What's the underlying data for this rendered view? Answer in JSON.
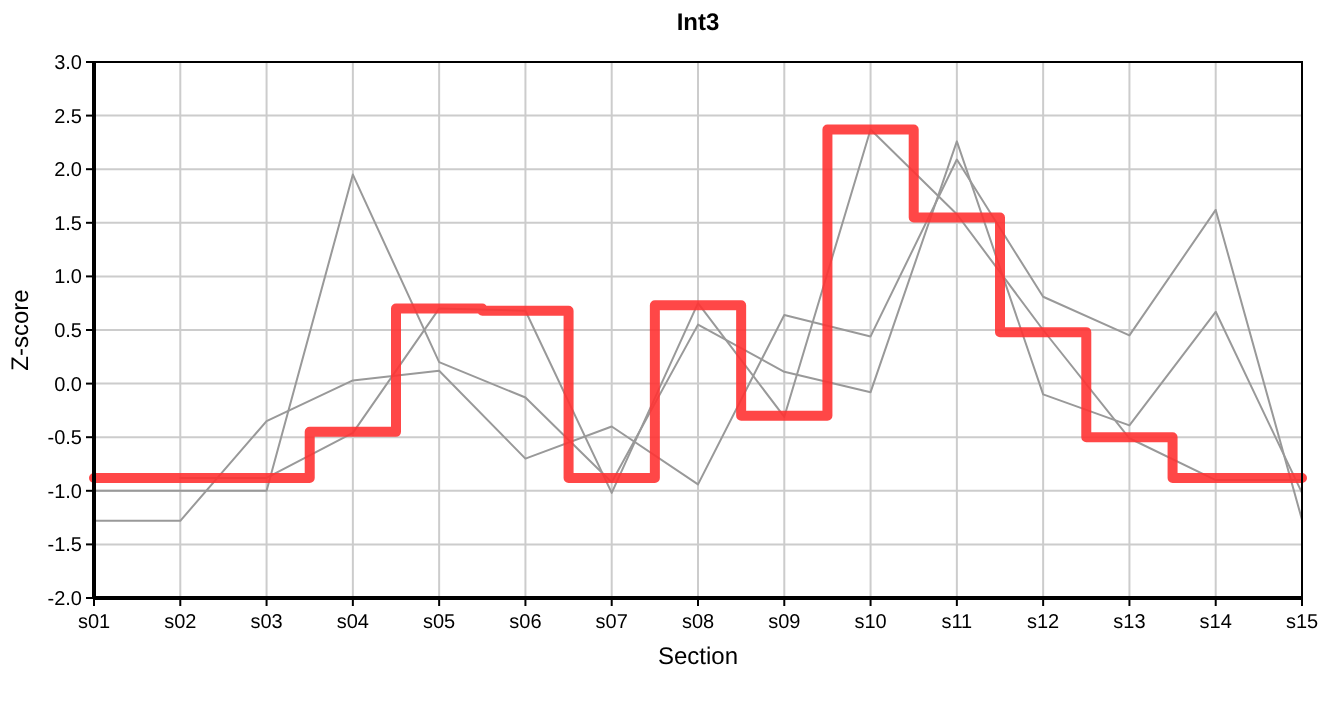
{
  "chart_data": {
    "type": "line",
    "title": "Int3",
    "xlabel": "Section",
    "ylabel": "Z-score",
    "categories": [
      "s01",
      "s02",
      "s03",
      "s04",
      "s05",
      "s06",
      "s07",
      "s08",
      "s09",
      "s10",
      "s11",
      "s12",
      "s13",
      "s14",
      "s15"
    ],
    "ylim": [
      -2,
      3
    ],
    "yticks": [
      {
        "value": -2,
        "label": "-2.0"
      },
      {
        "value": -1.5,
        "label": "-1.5"
      },
      {
        "value": -1,
        "label": "-1.0"
      },
      {
        "value": -0.5,
        "label": "-0.5"
      },
      {
        "value": 0,
        "label": "0.0"
      },
      {
        "value": 0.5,
        "label": "0.5"
      },
      {
        "value": 1,
        "label": "1.0"
      },
      {
        "value": 1.5,
        "label": "1.5"
      },
      {
        "value": 2,
        "label": "2.0"
      },
      {
        "value": 2.5,
        "label": "2.5"
      },
      {
        "value": 3,
        "label": "3.0"
      }
    ],
    "grid": true,
    "marker": "none",
    "series": [
      {
        "color": "#999999",
        "values": [
          -1.28,
          -1.28,
          -0.35,
          0.03,
          0.12,
          -0.7,
          -0.4,
          -0.94,
          0.64,
          0.44,
          2.09,
          0.81,
          0.45,
          1.62,
          -1.27
        ]
      },
      {
        "color": "#999999",
        "values": [
          -1.0,
          -1.0,
          -1.0,
          1.95,
          0.2,
          -0.13,
          -0.92,
          0.55,
          0.11,
          -0.08,
          2.26,
          -0.1,
          -0.39,
          0.67,
          -1.02
        ]
      },
      {
        "color": "#999999",
        "values": [
          null,
          -0.88,
          -0.88,
          -0.46,
          0.7,
          0.68,
          -1.02,
          0.75,
          -0.31,
          2.37,
          1.58,
          0.5,
          -0.51,
          -0.9,
          -0.9
        ]
      },
      {
        "type": "step",
        "color": "#ff3333",
        "values": [
          -0.88,
          -0.88,
          -0.88,
          -0.45,
          0.7,
          0.68,
          -0.88,
          0.73,
          -0.3,
          2.37,
          1.55,
          0.48,
          -0.5,
          -0.88,
          -0.88
        ]
      }
    ]
  }
}
